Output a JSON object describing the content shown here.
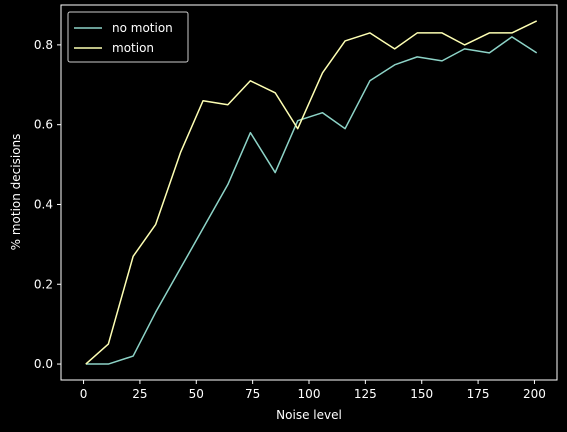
{
  "chart_data": {
    "type": "line",
    "title": "",
    "xlabel": "Noise level",
    "ylabel": "% motion decisions",
    "xlim": [
      -10,
      210
    ],
    "ylim": [
      -0.04,
      0.9
    ],
    "xticks": [
      0,
      25,
      50,
      75,
      100,
      125,
      150,
      175,
      200
    ],
    "yticks": [
      0.0,
      0.2,
      0.4,
      0.6,
      0.8
    ],
    "xtick_labels": [
      "0",
      "25",
      "50",
      "75",
      "100",
      "125",
      "150",
      "175",
      "200"
    ],
    "ytick_labels": [
      "0.0",
      "0.2",
      "0.4",
      "0.6",
      "0.8"
    ],
    "grid": false,
    "legend_position": "top-left",
    "background": "#000000",
    "foreground": "#ffffff",
    "x": [
      1,
      11,
      22,
      32,
      43,
      53,
      64,
      74,
      85,
      95,
      106,
      116,
      127,
      138,
      148,
      159,
      169,
      180,
      190,
      201
    ],
    "series": [
      {
        "name": "no motion",
        "color": "#8dd3c7",
        "values": [
          0.0,
          0.0,
          0.02,
          0.13,
          0.24,
          0.34,
          0.45,
          0.58,
          0.48,
          0.61,
          0.63,
          0.59,
          0.71,
          0.75,
          0.77,
          0.76,
          0.79,
          0.78,
          0.82,
          0.78
        ]
      },
      {
        "name": "motion",
        "color": "#feffb3",
        "values": [
          0.0,
          0.05,
          0.27,
          0.35,
          0.53,
          0.66,
          0.65,
          0.71,
          0.68,
          0.59,
          0.73,
          0.81,
          0.83,
          0.79,
          0.83,
          0.83,
          0.8,
          0.83,
          0.83,
          0.86
        ]
      }
    ]
  }
}
